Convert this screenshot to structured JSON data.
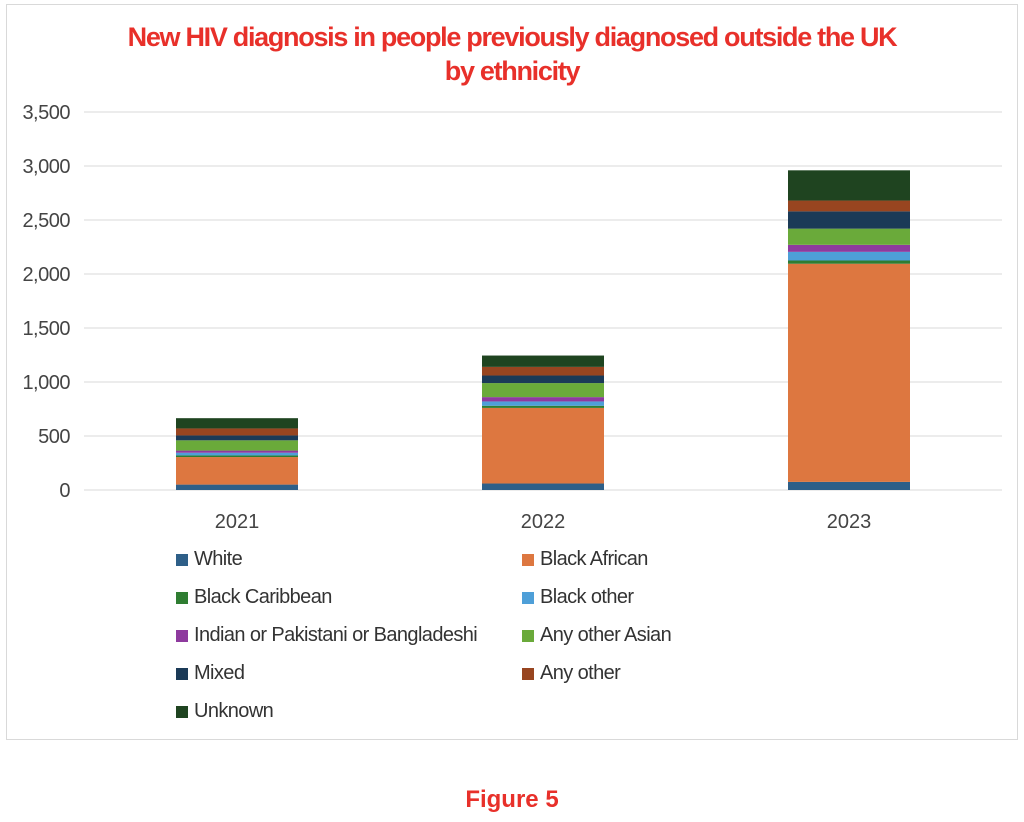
{
  "chart_data": {
    "type": "bar",
    "stacked": true,
    "title_lines": [
      "New HIV diagnosis in people previously diagnosed outside the UK",
      "by ethnicity"
    ],
    "categories": [
      "2021",
      "2022",
      "2023"
    ],
    "ylim": [
      0,
      3500
    ],
    "yticks": [
      "0",
      "500",
      "1,000",
      "1,500",
      "2,000",
      "2,500",
      "3,000",
      "3,500"
    ],
    "grid": true,
    "legend_position": "bottom",
    "series": [
      {
        "name": "White",
        "color": "#2e5f88",
        "values": [
          50,
          60,
          75
        ]
      },
      {
        "name": "Black African",
        "color": "#dd7740",
        "values": [
          255,
          700,
          2020
        ]
      },
      {
        "name": "Black Caribbean",
        "color": "#2f7d32",
        "values": [
          15,
          20,
          30
        ]
      },
      {
        "name": "Black other",
        "color": "#4e9fd8",
        "values": [
          25,
          40,
          80
        ]
      },
      {
        "name": "Indian or Pakistani or Bangladeshi",
        "color": "#8e3a9e",
        "values": [
          20,
          40,
          65
        ]
      },
      {
        "name": "Any other Asian",
        "color": "#6aaa3a",
        "values": [
          95,
          130,
          150
        ]
      },
      {
        "name": "Mixed",
        "color": "#1b3a57",
        "values": [
          45,
          70,
          160
        ]
      },
      {
        "name": "Any other",
        "color": "#984520",
        "values": [
          65,
          80,
          100
        ]
      },
      {
        "name": "Unknown",
        "color": "#1f4420",
        "values": [
          95,
          105,
          280
        ]
      }
    ]
  },
  "caption": "Figure 5"
}
